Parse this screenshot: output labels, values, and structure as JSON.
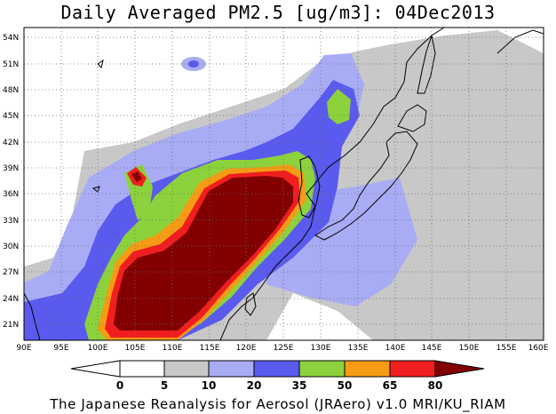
{
  "title": "Daily Averaged PM2.5 [ug/m3]: 04Dec2013",
  "footer": "The Japanese Reanalysis for Aerosol (JRAero) v1.0 MRI/KU_RIAM",
  "map": {
    "lon_range": [
      90,
      160
    ],
    "lat_range": [
      19.5,
      55.5
    ],
    "lat_ticks": [
      "54N",
      "51N",
      "48N",
      "45N",
      "42N",
      "39N",
      "36N",
      "33N",
      "30N",
      "27N",
      "24N",
      "21N"
    ],
    "lon_ticks": [
      "90E",
      "95E",
      "100E",
      "105E",
      "110E",
      "115E",
      "120E",
      "125E",
      "130E",
      "135E",
      "140E",
      "145E",
      "150E",
      "155E",
      "160E"
    ]
  },
  "colorbar": {
    "labels": [
      "0",
      "5",
      "10",
      "20",
      "35",
      "50",
      "65",
      "80"
    ],
    "colors": [
      "#ffffff",
      "#c8c8c8",
      "#a8acf5",
      "#5a5aef",
      "#8cd23c",
      "#f59b14",
      "#f01e1e",
      "#820000"
    ]
  }
}
